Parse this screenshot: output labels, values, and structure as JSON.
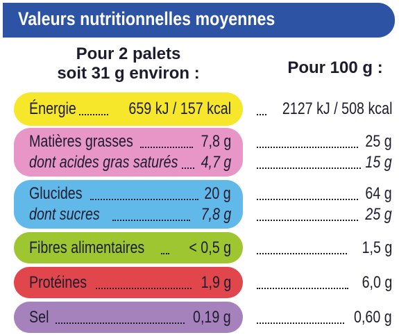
{
  "title": "Valeurs nutritionnelles moyennes",
  "col1": {
    "line1": "Pour 2 palets",
    "line2": "soit 31 g environ :"
  },
  "col2": "Pour 100 g :",
  "colors": {
    "header": "#2d54a4",
    "energie": "#f7e72a",
    "matieres": "#e896c7",
    "glucides": "#61b9ea",
    "fibres": "#9dc631",
    "proteines": "#e1464d",
    "sel": "#a582bc"
  },
  "rows": [
    {
      "label": "Énergie",
      "value": "659 kJ / 157 kcal",
      "per100": "2127 kJ / 508 kcal"
    },
    {
      "label": "Matières grasses",
      "value": "7,8 g",
      "per100": "25 g"
    },
    {
      "label": "dont acides gras saturés",
      "value": "4,7 g",
      "per100": "15 g"
    },
    {
      "label": "Glucides",
      "value": "20 g",
      "per100": "64 g"
    },
    {
      "label": "dont sucres",
      "value": "7,8 g",
      "per100": "25 g"
    },
    {
      "label": "Fibres alimentaires",
      "value": "< 0,5 g",
      "per100": "1,5 g"
    },
    {
      "label": "Protéines",
      "value": "1,9 g",
      "per100": "6,0 g"
    },
    {
      "label": "Sel",
      "value": "0,19 g",
      "per100": "0,60 g"
    }
  ]
}
